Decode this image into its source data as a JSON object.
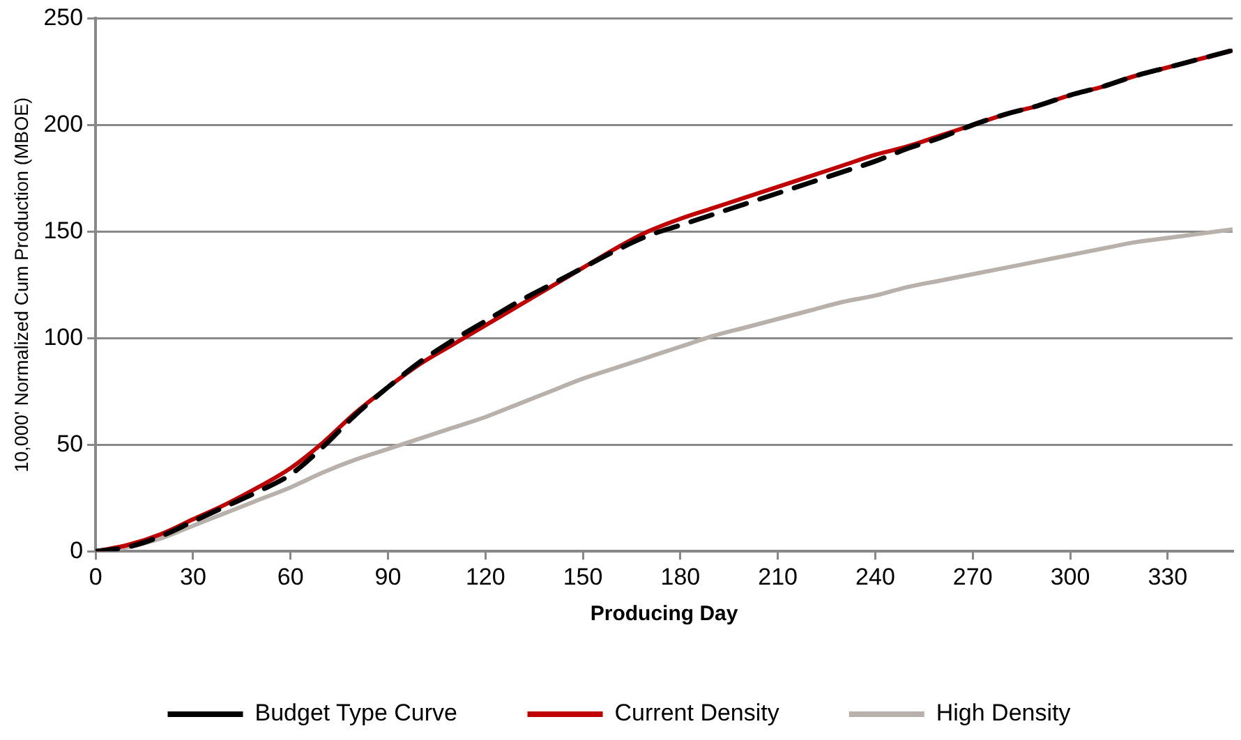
{
  "chart_data": {
    "type": "line",
    "xlabel": "Producing Day",
    "ylabel": "10,000' Normalized Cum Production (MBOE)",
    "x": [
      0,
      10,
      20,
      30,
      40,
      50,
      60,
      70,
      80,
      90,
      100,
      110,
      120,
      130,
      140,
      150,
      160,
      170,
      180,
      190,
      200,
      210,
      220,
      230,
      240,
      250,
      260,
      270,
      280,
      290,
      300,
      310,
      320,
      330,
      340,
      350
    ],
    "series": [
      {
        "name": "Budget Type Curve",
        "color": "#000000",
        "line_style": "dashed",
        "values": [
          0,
          2,
          7,
          14,
          21,
          28,
          36,
          49,
          64,
          77,
          89,
          99,
          108,
          117,
          125,
          133,
          141,
          148,
          153,
          158,
          163,
          168,
          173,
          178,
          183,
          189,
          194,
          200,
          205,
          209,
          214,
          218,
          223,
          227,
          231,
          235
        ]
      },
      {
        "name": "Current Density",
        "color": "#c00000",
        "line_style": "solid",
        "values": [
          0,
          3,
          8,
          15,
          22,
          30,
          39,
          51,
          65,
          77,
          88,
          97,
          106,
          115,
          124,
          133,
          142,
          150,
          156,
          161,
          166,
          171,
          176,
          181,
          186,
          190,
          195,
          200,
          205,
          209,
          214,
          218,
          223,
          227,
          231,
          235
        ]
      },
      {
        "name": "High Density",
        "color": "#b8b0aa",
        "line_style": "solid",
        "values": [
          0,
          2,
          6,
          12,
          18,
          24,
          30,
          37,
          43,
          48,
          53,
          58,
          63,
          69,
          75,
          81,
          86,
          91,
          96,
          101,
          105,
          109,
          113,
          117,
          120,
          124,
          127,
          130,
          133,
          136,
          139,
          142,
          145,
          147,
          149,
          151
        ]
      }
    ],
    "xlim": [
      0,
      350
    ],
    "xticks": [
      0,
      30,
      60,
      90,
      120,
      150,
      180,
      210,
      240,
      270,
      300,
      330
    ],
    "ylim": [
      0,
      250
    ],
    "yticks": [
      0,
      50,
      100,
      150,
      200,
      250
    ],
    "grid": "y",
    "legend": "bottom",
    "marker": "none"
  }
}
